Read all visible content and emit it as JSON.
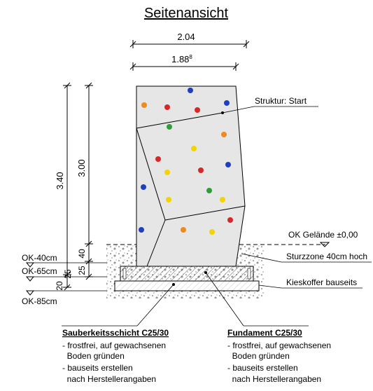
{
  "title": "Seitenansicht",
  "dimensions": {
    "width_top": "2.04",
    "width_inner": "1.88",
    "width_inner_sup": "8",
    "height_total": "3.40",
    "height_block": "3.00",
    "depth_40": "40",
    "depth_25": "25",
    "depth_20a": "20",
    "depth_25b": "25"
  },
  "levels": {
    "ok_minus_40": "OK-40cm",
    "ok_minus_65": "OK-65cm",
    "ok_minus_85": "OK-85cm"
  },
  "callouts": {
    "struktur": "Struktur: Start",
    "ok_gelaende": "OK Gelände ±0,00",
    "sturzzone": "Sturzzone 40cm hoch",
    "kieskoffer": "Kieskoffer bauseits"
  },
  "notes": {
    "sauberkeit": {
      "heading": "Sauberkeitsschicht C25/30",
      "lines": [
        "- frostfrei, auf gewachsenen",
        "  Boden gründen",
        "- bauseits erstellen",
        "  nach Herstellerangaben"
      ]
    },
    "fundament": {
      "heading": "Fundament C25/30",
      "lines": [
        "- frostfrei, auf gewachsenen",
        "  Boden gründen",
        "- bauseits erstellen",
        "  nach Herstellerangaben"
      ]
    }
  },
  "colors": {
    "block_fill": "#e6e6e6",
    "hold_red": "#d62828",
    "hold_blue": "#1f3fbf",
    "hold_yellow": "#f2d400",
    "hold_orange": "#ee8a1e",
    "hold_green": "#2e9e3a"
  }
}
